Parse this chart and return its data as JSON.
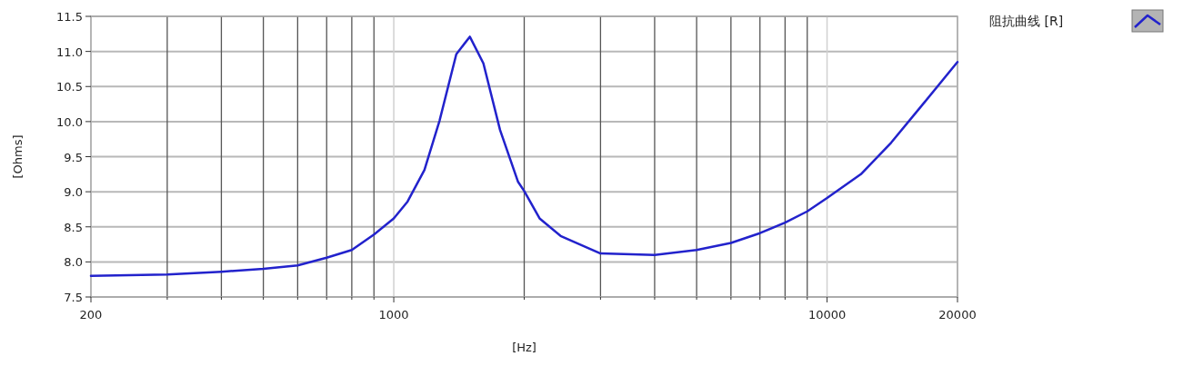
{
  "chart_data": {
    "type": "line",
    "xlabel": "[Hz]",
    "ylabel": "[Ohms]",
    "log": "x",
    "grid": true,
    "legend": "top right",
    "x": [
      200,
      300,
      400,
      500,
      600,
      700,
      800,
      900,
      1000,
      1076,
      1177,
      1275,
      1394,
      1498,
      1610,
      1759,
      1936,
      2000,
      2170,
      2427,
      3000,
      4000,
      5000,
      6000,
      7000,
      8000,
      9000,
      10000,
      11970,
      14060,
      16500,
      20000
    ],
    "series": [
      {
        "name": "阻抗曲线 [R]",
        "color": "#2222cc",
        "values": [
          7.8,
          7.82,
          7.86,
          7.9,
          7.95,
          8.06,
          8.17,
          8.39,
          8.62,
          8.86,
          9.31,
          10.01,
          10.96,
          11.21,
          10.83,
          9.88,
          9.14,
          9.01,
          8.62,
          8.37,
          8.12,
          8.1,
          8.17,
          8.27,
          8.41,
          8.56,
          8.72,
          8.91,
          9.25,
          9.7,
          10.22,
          10.85
        ]
      }
    ],
    "xlim": [
      200,
      20000
    ],
    "xticks": [
      200,
      {
        "value": 300,
        "label": null
      },
      {
        "value": 400,
        "label": null
      },
      {
        "value": 500,
        "label": null
      },
      {
        "value": 600,
        "label": null
      },
      {
        "value": 700,
        "label": null
      },
      {
        "value": 800,
        "label": null
      },
      {
        "value": 900,
        "label": null
      },
      1000,
      {
        "value": 2000,
        "label": null
      },
      {
        "value": 3000,
        "label": null
      },
      {
        "value": 4000,
        "label": null
      },
      {
        "value": 5000,
        "label": null
      },
      {
        "value": 6000,
        "label": null
      },
      {
        "value": 7000,
        "label": null
      },
      {
        "value": 8000,
        "label": null
      },
      {
        "value": 9000,
        "label": null
      },
      10000,
      20000
    ],
    "ylim": [
      7.5,
      11.5
    ],
    "yticks": [
      7.5,
      {
        "value": 8,
        "label": "8.0"
      },
      8.5,
      {
        "value": 9,
        "label": "9.0"
      },
      9.5,
      {
        "value": 10,
        "label": "10.0"
      },
      10.5,
      {
        "value": 11,
        "label": "11.0"
      },
      11.5
    ]
  }
}
